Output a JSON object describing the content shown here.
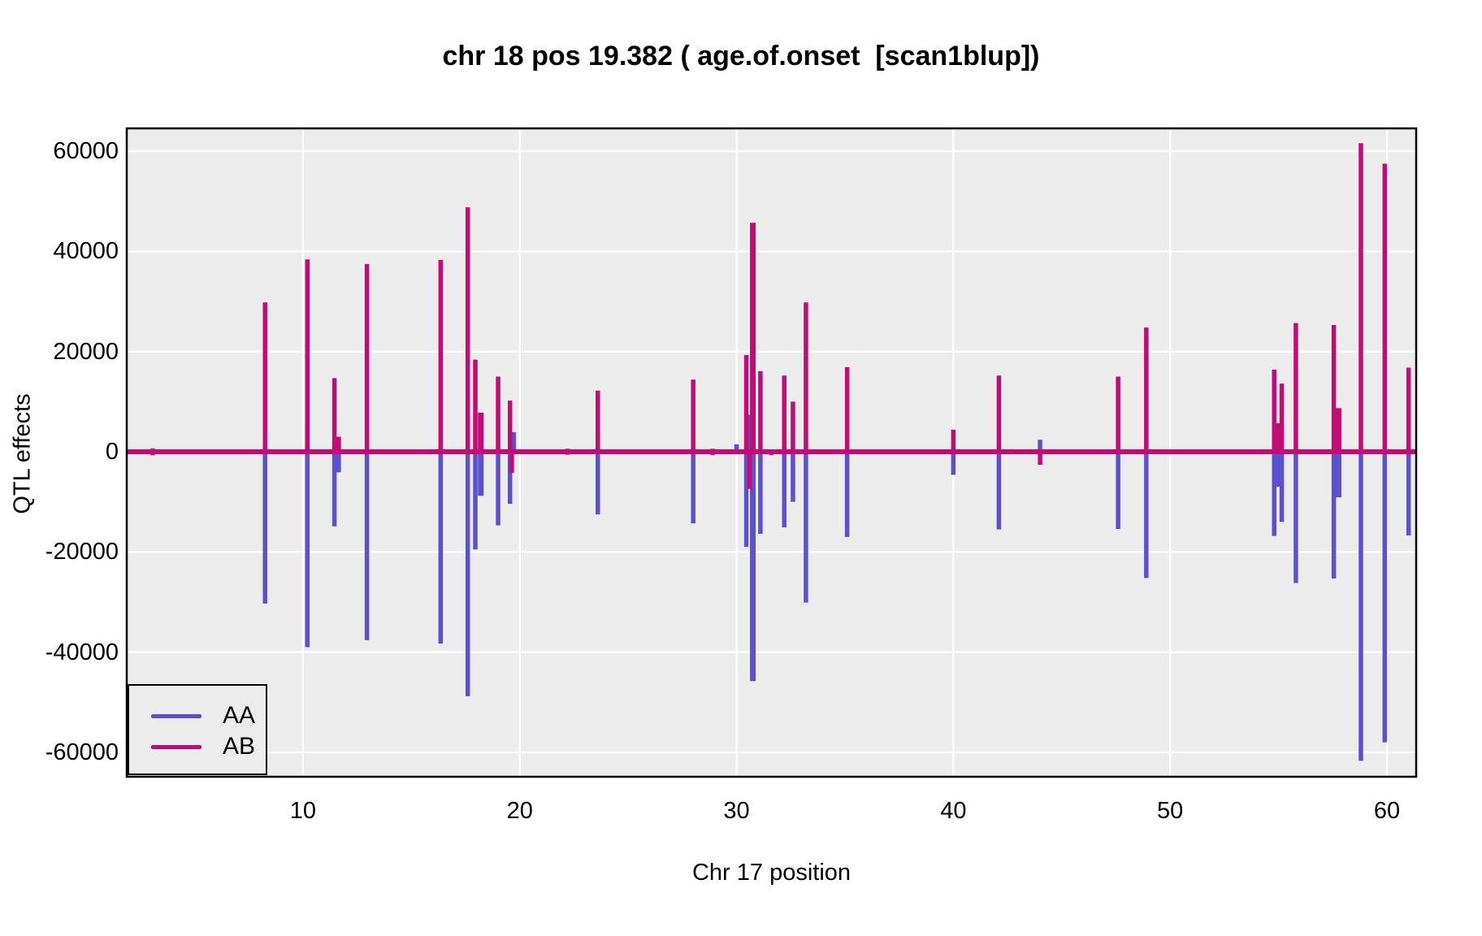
{
  "chart": {
    "title": "chr 18 pos 19.382 ( age.of.onset  [scan1blup])",
    "xlabel": "Chr 17 position",
    "ylabel": "QTL effects"
  },
  "legend": {
    "items": [
      {
        "label": "AA",
        "color": "#5B51CE"
      },
      {
        "label": "AB",
        "color": "#C40A74"
      }
    ]
  },
  "chart_data": {
    "type": "line",
    "title": "chr 18 pos 19.382 ( age.of.onset  [scan1blup])",
    "xlabel": "Chr 17 position",
    "ylabel": "QTL effects",
    "x_domain": [
      1.87,
      61.35
    ],
    "y_domain": [
      -64880,
      64560
    ],
    "x_ticks": [
      10,
      20,
      30,
      40,
      50,
      60
    ],
    "y_ticks": [
      -60000,
      -40000,
      -20000,
      0,
      20000,
      40000,
      60000
    ],
    "grid": "on",
    "legend_position": "bottom-left-inside",
    "panel_bg": "#ECECEC",
    "grid_color": "#FFFFFF",
    "border_color": "#000000",
    "series_colors": {
      "AA": "#5B51CE",
      "AB": "#C40A74"
    },
    "baseline_value": 0,
    "spikes": [
      {
        "pos": 3.07,
        "aa": 700,
        "ab": -700
      },
      {
        "pos": 4.9,
        "aa": -200,
        "ab": 250
      },
      {
        "pos": 8.25,
        "aa": -30300,
        "ab": 29800
      },
      {
        "pos": 10.2,
        "aa": -39000,
        "ab": 38400
      },
      {
        "pos": 11.45,
        "aa": -14900,
        "ab": 14700
      },
      {
        "pos": 11.62,
        "aa": -4100,
        "ab": 3000,
        "w": 7
      },
      {
        "pos": 12.95,
        "aa": -37600,
        "ab": 37500
      },
      {
        "pos": 16.35,
        "aa": -38300,
        "ab": 38300
      },
      {
        "pos": 17.6,
        "aa": -48800,
        "ab": 48800
      },
      {
        "pos": 17.95,
        "aa": -19500,
        "ab": 18400
      },
      {
        "pos": 18.2,
        "aa": -8800,
        "ab": 7800,
        "w": 7
      },
      {
        "pos": 19.0,
        "aa": -14700,
        "ab": 15000
      },
      {
        "pos": 19.55,
        "aa": -10400,
        "ab": 10200
      },
      {
        "pos": 19.63,
        "aa": 0,
        "ab": -4200
      },
      {
        "pos": 19.72,
        "aa": 3900,
        "ab": 0
      },
      {
        "pos": 22.2,
        "aa": -600,
        "ab": 600
      },
      {
        "pos": 23.6,
        "aa": -12500,
        "ab": 12200
      },
      {
        "pos": 24.9,
        "aa": -300,
        "ab": 300
      },
      {
        "pos": 26.1,
        "aa": -200,
        "ab": 200
      },
      {
        "pos": 28.0,
        "aa": -14300,
        "ab": 14400
      },
      {
        "pos": 28.9,
        "aa": -700,
        "ab": 600
      },
      {
        "pos": 30.0,
        "aa": 1500,
        "ab": 400
      },
      {
        "pos": 30.45,
        "aa": -19000,
        "ab": 19300
      },
      {
        "pos": 30.6,
        "aa": 7400,
        "ab": -7400
      },
      {
        "pos": 30.75,
        "aa": -45800,
        "ab": 45700,
        "w": 7
      },
      {
        "pos": 31.1,
        "aa": -16400,
        "ab": 16100
      },
      {
        "pos": 31.6,
        "aa": -700,
        "ab": 400
      },
      {
        "pos": 32.2,
        "aa": -15100,
        "ab": 15200
      },
      {
        "pos": 32.6,
        "aa": -10000,
        "ab": 10000
      },
      {
        "pos": 33.2,
        "aa": -30100,
        "ab": 29800
      },
      {
        "pos": 35.1,
        "aa": -17000,
        "ab": 16900
      },
      {
        "pos": 38.4,
        "aa": -300,
        "ab": 300
      },
      {
        "pos": 40.0,
        "aa": -4600,
        "ab": 4400
      },
      {
        "pos": 42.1,
        "aa": -15500,
        "ab": 15200
      },
      {
        "pos": 42.7,
        "aa": -400,
        "ab": 500
      },
      {
        "pos": 44.0,
        "aa": 2400,
        "ab": -2600
      },
      {
        "pos": 45.2,
        "aa": -200,
        "ab": 200
      },
      {
        "pos": 47.6,
        "aa": -15400,
        "ab": 15000
      },
      {
        "pos": 48.9,
        "aa": -25200,
        "ab": 24800
      },
      {
        "pos": 51.4,
        "aa": -250,
        "ab": 250
      },
      {
        "pos": 52.9,
        "aa": -250,
        "ab": 250
      },
      {
        "pos": 54.8,
        "aa": -16800,
        "ab": 16400
      },
      {
        "pos": 54.95,
        "aa": -7000,
        "ab": 5700,
        "w": 8
      },
      {
        "pos": 55.15,
        "aa": -14000,
        "ab": 13600
      },
      {
        "pos": 55.8,
        "aa": -26200,
        "ab": 25700
      },
      {
        "pos": 57.55,
        "aa": -25300,
        "ab": 25300
      },
      {
        "pos": 57.75,
        "aa": -9100,
        "ab": 8700,
        "w": 8
      },
      {
        "pos": 58.8,
        "aa": -61700,
        "ab": 61600
      },
      {
        "pos": 59.9,
        "aa": -58000,
        "ab": 57500
      },
      {
        "pos": 61.0,
        "aa": -16700,
        "ab": 16800
      }
    ]
  }
}
